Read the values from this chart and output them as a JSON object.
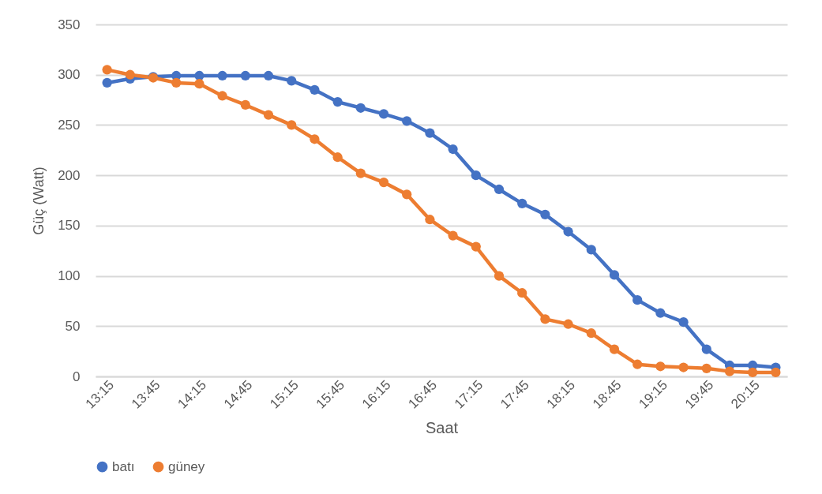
{
  "chart_data": {
    "type": "line",
    "xlabel": "Saat",
    "ylabel": "Güç (Watt)",
    "categories": [
      "13:15",
      null,
      "13:45",
      null,
      "14:15",
      null,
      "14:45",
      null,
      "15:15",
      null,
      "15:45",
      null,
      "16:15",
      null,
      "16:45",
      null,
      "17:15",
      null,
      "17:45",
      null,
      "18:15",
      null,
      "18:45",
      null,
      "19:15",
      null,
      "19:45",
      null,
      "20:15",
      null
    ],
    "series": [
      {
        "name": "batı",
        "color": "#4472c4",
        "values": [
          292,
          296,
          298,
          299,
          299,
          299,
          299,
          299,
          294,
          285,
          273,
          267,
          261,
          254,
          242,
          226,
          200,
          186,
          172,
          161,
          144,
          126,
          101,
          76,
          63,
          54,
          27,
          11,
          11,
          9
        ]
      },
      {
        "name": "güney",
        "color": "#ed7d31",
        "values": [
          305,
          300,
          297,
          292,
          291,
          279,
          270,
          260,
          250,
          236,
          218,
          202,
          193,
          181,
          156,
          140,
          129,
          100,
          83,
          57,
          52,
          43,
          27,
          12,
          10,
          9,
          8,
          5,
          4,
          4
        ]
      }
    ],
    "ylim": [
      0,
      350
    ],
    "yticks": [
      0,
      50,
      100,
      150,
      200,
      250,
      300,
      350
    ],
    "grid": "y",
    "legend": "bottom",
    "marker": "circle",
    "line_style": "solid"
  }
}
